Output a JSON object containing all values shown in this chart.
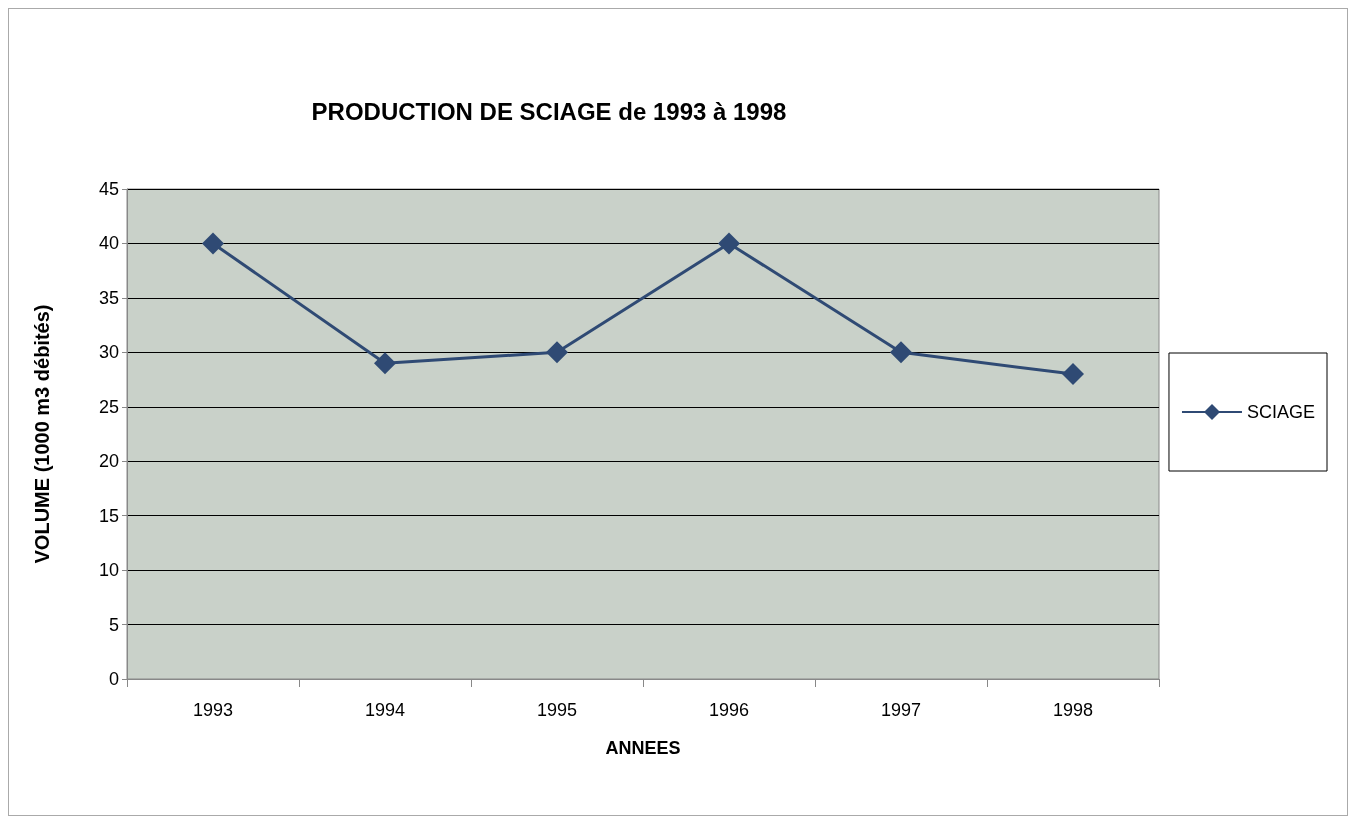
{
  "chart_data": {
    "type": "line",
    "title": "PRODUCTION DE SCIAGE de 1993 à 1998",
    "xlabel": "ANNEES",
    "ylabel": "VOLUME (1000 m3 débités)",
    "categories": [
      "1993",
      "1994",
      "1995",
      "1996",
      "1997",
      "1998"
    ],
    "series": [
      {
        "name": "SCIAGE",
        "color": "#2f4a74",
        "values": [
          40,
          29,
          30,
          40,
          30,
          28
        ]
      }
    ],
    "ylim": [
      0,
      45
    ],
    "yticks": [
      0,
      5,
      10,
      15,
      20,
      25,
      30,
      35,
      40,
      45
    ],
    "grid": "y",
    "legend": "right",
    "marker": "diamond",
    "line_style": "solid"
  }
}
